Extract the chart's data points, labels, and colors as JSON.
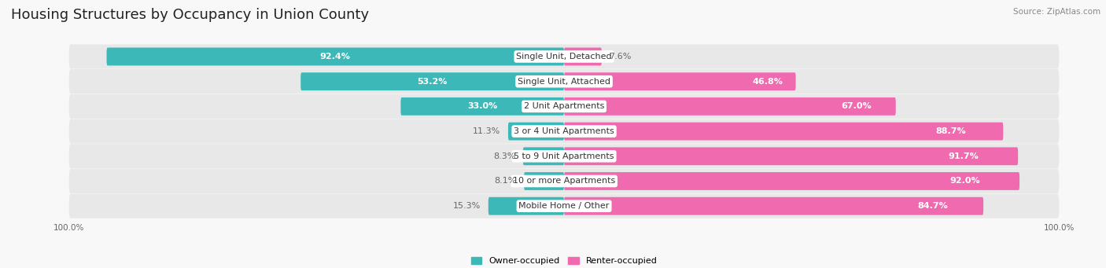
{
  "title": "Housing Structures by Occupancy in Union County",
  "source": "Source: ZipAtlas.com",
  "categories": [
    "Single Unit, Detached",
    "Single Unit, Attached",
    "2 Unit Apartments",
    "3 or 4 Unit Apartments",
    "5 to 9 Unit Apartments",
    "10 or more Apartments",
    "Mobile Home / Other"
  ],
  "owner_pct": [
    92.4,
    53.2,
    33.0,
    11.3,
    8.3,
    8.1,
    15.3
  ],
  "renter_pct": [
    7.6,
    46.8,
    67.0,
    88.7,
    91.7,
    92.0,
    84.7
  ],
  "owner_color": "#3cb8b8",
  "renter_color": "#f06ab0",
  "row_bg_color": "#e8e8e8",
  "fig_bg_color": "#f8f8f8",
  "title_fontsize": 13,
  "label_fontsize": 8,
  "source_fontsize": 7.5,
  "legend_fontsize": 8,
  "axis_label_fontsize": 7.5,
  "owner_label_threshold": 25,
  "renter_label_threshold": 15
}
